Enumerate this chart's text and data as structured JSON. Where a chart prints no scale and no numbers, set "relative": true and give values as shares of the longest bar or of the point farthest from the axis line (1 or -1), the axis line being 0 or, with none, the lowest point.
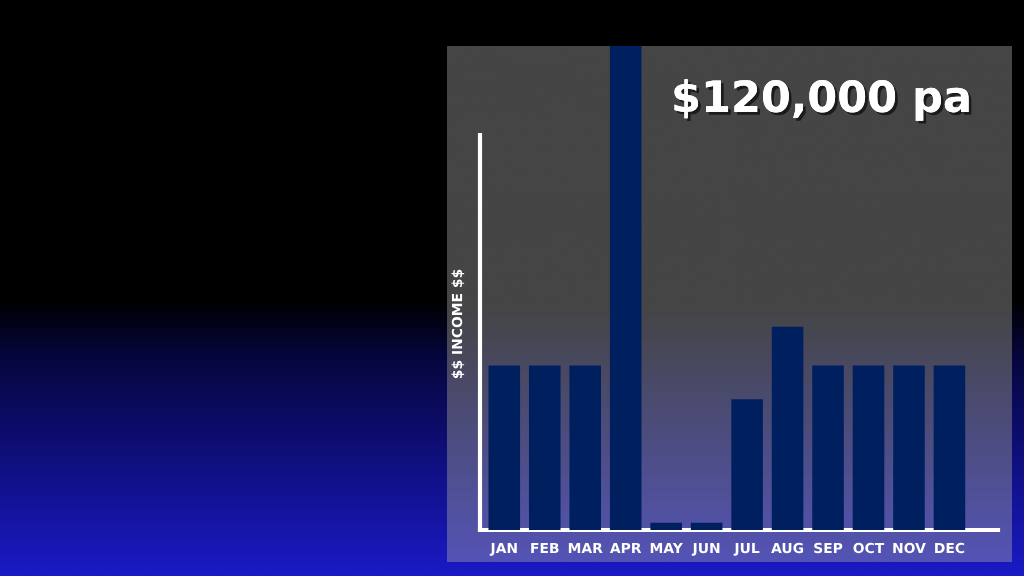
{
  "chart_data": {
    "type": "bar",
    "title": "$120,000 pa",
    "ylabel": "$$ INCOME $$",
    "categories": [
      "JAN",
      "FEB",
      "MAR",
      "APR",
      "MAY",
      "JUN",
      "JUL",
      "AUG",
      "SEP",
      "OCT",
      "NOV",
      "DEC"
    ],
    "values": [
      0.34,
      0.34,
      0.34,
      1,
      0.015,
      0.015,
      0.27,
      0.42,
      0.34,
      0.34,
      0.34,
      0.34
    ],
    "color": "#001f5f",
    "relative": true
  }
}
